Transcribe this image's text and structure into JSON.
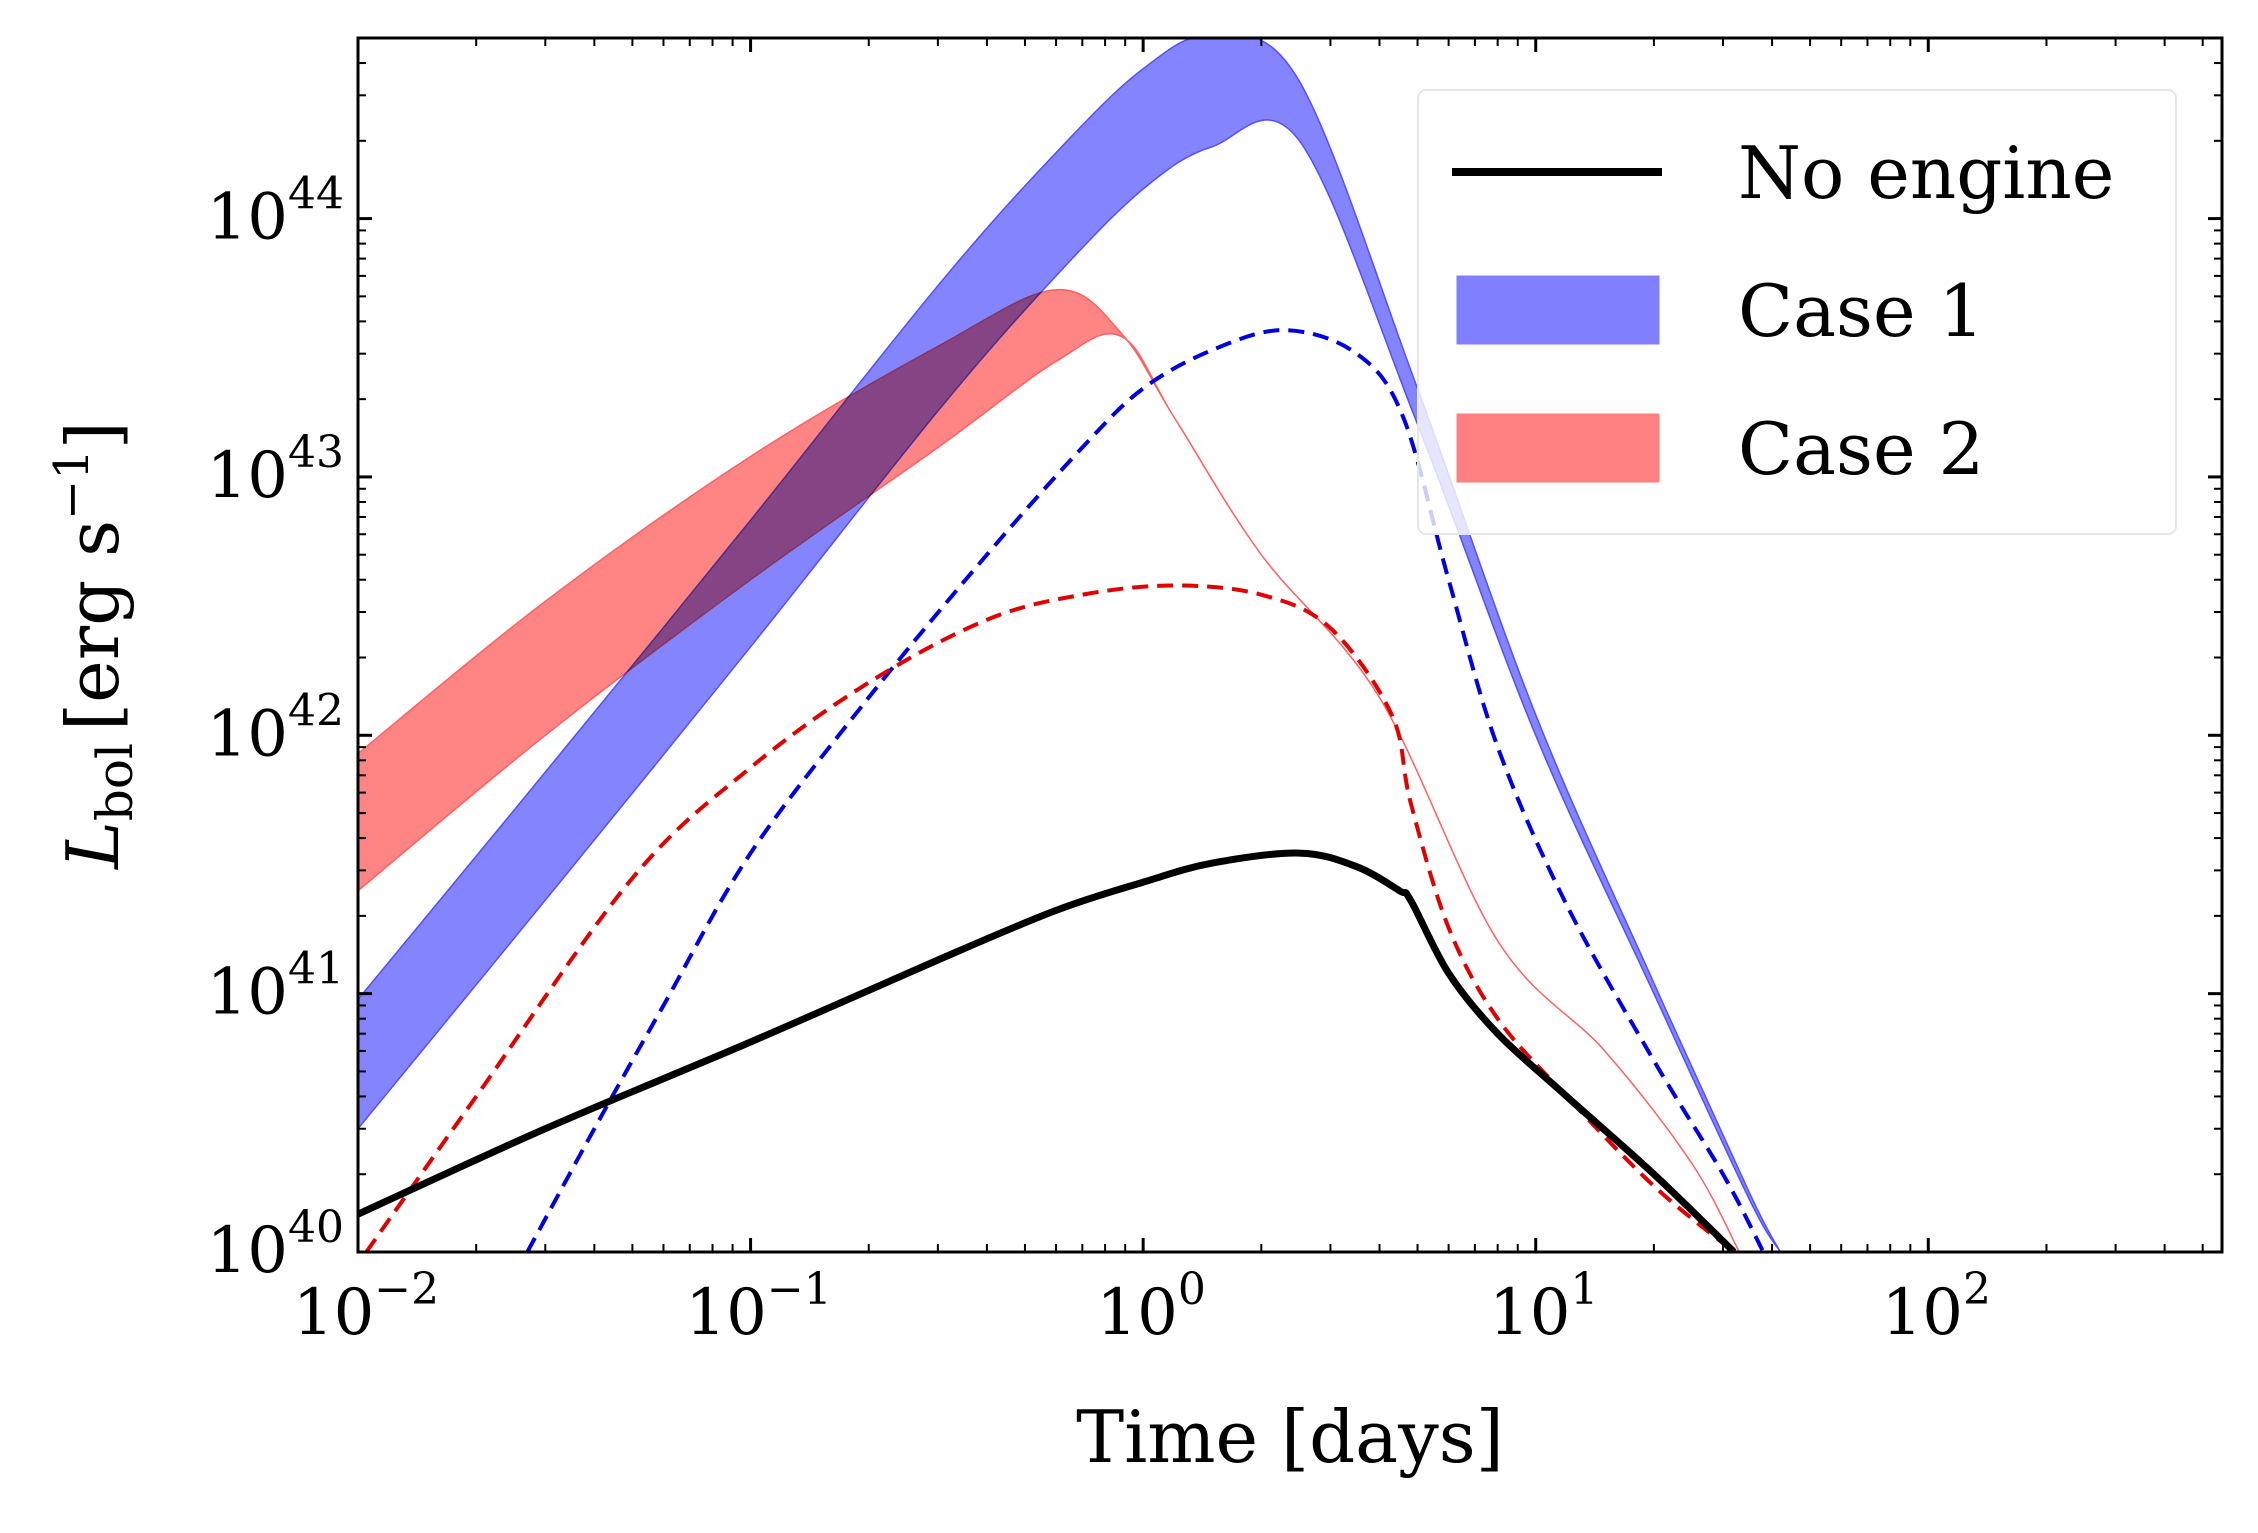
{
  "chart_data": {
    "type": "line",
    "title": "",
    "xlabel": "Time [days]",
    "ylabel": {
      "symbol": "L",
      "subscript": "bol",
      "unit": "[erg s",
      "unit_exponent": "−1",
      "unit_close": "]"
    },
    "xscale": "log",
    "yscale": "log",
    "xlim": [
      0.01,
      560
    ],
    "ylim": [
      1e+40,
      5e+44
    ],
    "x_ticks": [
      {
        "value": 0.01,
        "base": "10",
        "exp": "−2"
      },
      {
        "value": 0.1,
        "base": "10",
        "exp": "−1"
      },
      {
        "value": 1,
        "base": "10",
        "exp": "0"
      },
      {
        "value": 10,
        "base": "10",
        "exp": "1"
      },
      {
        "value": 100,
        "base": "10",
        "exp": "2"
      }
    ],
    "y_ticks": [
      {
        "value": 1e+40,
        "base": "10",
        "exp": "40"
      },
      {
        "value": 1e+41,
        "base": "10",
        "exp": "41"
      },
      {
        "value": 1e+42,
        "base": "10",
        "exp": "42"
      },
      {
        "value": 1e+43,
        "base": "10",
        "exp": "43"
      },
      {
        "value": 1e+44,
        "base": "10",
        "exp": "44"
      }
    ],
    "legend": {
      "position": "top-right",
      "entries": [
        {
          "label": "No engine",
          "style": "line",
          "color": "#000000"
        },
        {
          "label": "Case 1",
          "style": "band",
          "color": "#8080ff"
        },
        {
          "label": "Case 2",
          "style": "band",
          "color": "#ff8080"
        }
      ]
    },
    "series": [
      {
        "name": "Case 1",
        "kind": "band",
        "fill": "#8080ff",
        "edge": "#5050ff",
        "x": [
          0.01,
          0.03,
          0.1,
          0.3,
          0.6,
          1.0,
          1.5,
          2.5,
          5,
          10,
          20,
          35,
          42
        ],
        "lower": [
          3e+40,
          2.3e+41,
          2.2e+42,
          1.8e+43,
          6e+43,
          1.3e+44,
          1.9e+44,
          2e+44,
          1.6e+43,
          1e+42,
          1e+41,
          1.6e+40,
          1e+40
        ],
        "upper": [
          9.5e+40,
          7.2e+41,
          6.8e+42,
          5.5e+43,
          1.8e+44,
          3.8e+44,
          5.1e+44,
          3.4e+44,
          2.2e+43,
          1.2e+42,
          1.1e+41,
          1.7e+40,
          1e+40
        ]
      },
      {
        "name": "Case 2",
        "kind": "band",
        "fill": "#ff8080",
        "edge": "#ff6060",
        "x": [
          0.01,
          0.03,
          0.1,
          0.3,
          0.6,
          0.88,
          1.2,
          2,
          4,
          8,
          15,
          25,
          33
        ],
        "lower": [
          2.5e+41,
          1e+42,
          4e+42,
          1.3e+43,
          2.8e+43,
          3.5e+43,
          1.7e+43,
          5e+42,
          1.4e+42,
          1.6e+41,
          6e+40,
          2.2e+40,
          1e+40
        ],
        "upper": [
          8.5e+41,
          3.3e+42,
          1.2e+43,
          3.2e+43,
          5.3e+43,
          3.6e+43,
          1.7e+43,
          5e+42,
          1.4e+42,
          1.6e+41,
          6e+40,
          2.2e+40,
          1e+40
        ]
      },
      {
        "name": "Case 1 dashed",
        "kind": "line",
        "dash": true,
        "color": "#0000e0",
        "x": [
          0.027,
          0.04,
          0.06,
          0.1,
          0.2,
          0.4,
          0.7,
          1.0,
          1.5,
          2.3,
          3.5,
          4.6,
          6,
          8,
          12,
          20,
          30,
          38
        ],
        "y": [
          1e+40,
          3e+40,
          9e+40,
          3.5e+41,
          1.4e+42,
          5e+42,
          1.3e+43,
          2.2e+43,
          3.1e+43,
          3.7e+43,
          3e+43,
          1.7e+43,
          4e+42,
          9e+41,
          2.2e+41,
          5.5e+40,
          2e+40,
          1e+40
        ]
      },
      {
        "name": "Case 2 dashed",
        "kind": "line",
        "dash": true,
        "color": "#e00000",
        "x": [
          0.0105,
          0.02,
          0.05,
          0.1,
          0.2,
          0.4,
          0.7,
          1.2,
          2,
          3,
          4.3,
          4.8,
          6,
          8,
          12,
          20,
          32
        ],
        "y": [
          1e+40,
          4e+40,
          2.8e+41,
          7.5e+41,
          1.6e+42,
          2.8e+42,
          3.5e+42,
          3.8e+42,
          3.5e+42,
          2.6e+42,
          1.2e+42,
          5.5e+41,
          1.8e+41,
          8e+40,
          4e+40,
          1.8e+40,
          1e+40
        ]
      },
      {
        "name": "No engine",
        "kind": "line",
        "dash": false,
        "color": "#000000",
        "x": [
          0.01,
          0.03,
          0.1,
          0.3,
          0.6,
          1.0,
          1.5,
          2.5,
          3.5,
          4.5,
          4.8,
          6,
          8,
          12,
          20,
          32
        ],
        "y": [
          1.4e+40,
          3e+40,
          6.5e+40,
          1.35e+41,
          2.1e+41,
          2.7e+41,
          3.2e+41,
          3.5e+41,
          3.1e+41,
          2.5e+41,
          2.3e+41,
          1.2e+41,
          7e+40,
          4e+40,
          2e+40,
          1e+40
        ]
      }
    ]
  }
}
